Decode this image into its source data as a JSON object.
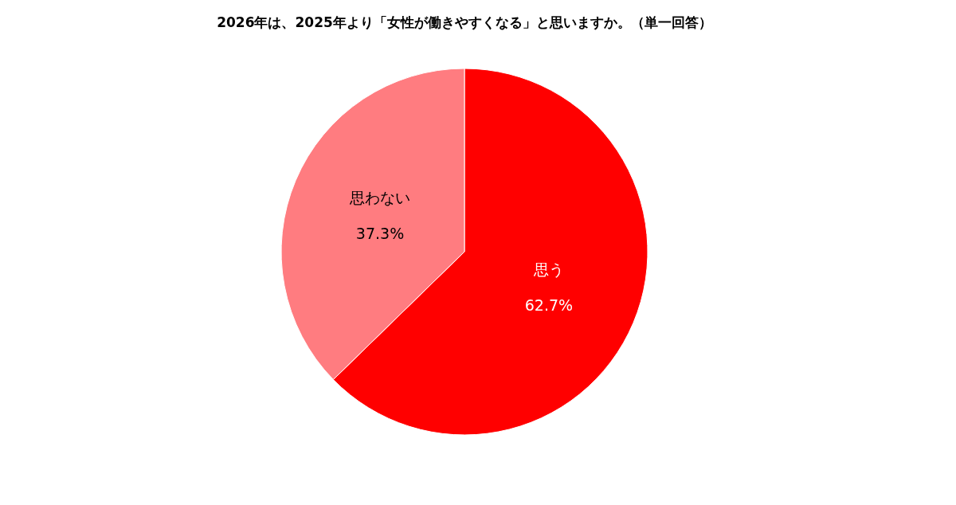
{
  "chart_data": {
    "type": "pie",
    "title": "2026年は、2025年より「女性が働きやすくなる」と思いますか。（単一回答）",
    "categories": [
      "思う",
      "思わない"
    ],
    "values": [
      62.7,
      37.3
    ],
    "value_labels": [
      "62.7%",
      "37.3%"
    ],
    "colors": [
      "#ff0000",
      "#ff7c80"
    ]
  }
}
